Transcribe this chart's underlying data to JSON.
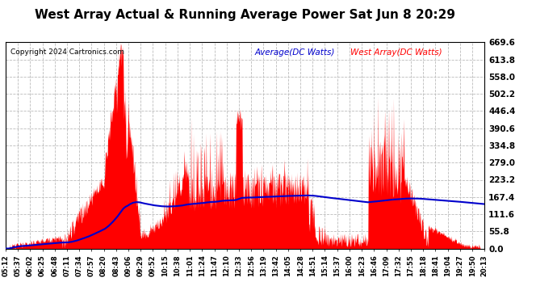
{
  "title": "West Array Actual & Running Average Power Sat Jun 8 20:29",
  "copyright": "Copyright 2024 Cartronics.com",
  "legend_avg": "Average(DC Watts)",
  "legend_west": "West Array(DC Watts)",
  "ymax": 669.6,
  "ymin": 0.0,
  "yticks": [
    0.0,
    55.8,
    111.6,
    167.4,
    223.2,
    279.0,
    334.8,
    390.6,
    446.4,
    502.2,
    558.0,
    613.8,
    669.6
  ],
  "background_color": "#ffffff",
  "grid_color": "#bbbbbb",
  "fill_color": "#ff0000",
  "avg_line_color": "#0000cc",
  "west_label_color": "#ff0000",
  "avg_label_color": "#0000cc",
  "title_color": "#000000",
  "copyright_color": "#000000",
  "tick_label_color": "#000000",
  "xtick_labels": [
    "05:12",
    "05:37",
    "06:02",
    "06:25",
    "06:48",
    "07:11",
    "07:34",
    "07:57",
    "08:20",
    "08:43",
    "09:06",
    "09:29",
    "09:52",
    "10:15",
    "10:38",
    "11:01",
    "11:24",
    "11:47",
    "12:10",
    "12:33",
    "12:56",
    "13:19",
    "13:42",
    "14:05",
    "14:28",
    "14:51",
    "15:14",
    "15:37",
    "16:00",
    "16:23",
    "16:46",
    "17:09",
    "17:32",
    "17:55",
    "18:18",
    "18:41",
    "19:04",
    "19:27",
    "19:50",
    "20:13"
  ]
}
